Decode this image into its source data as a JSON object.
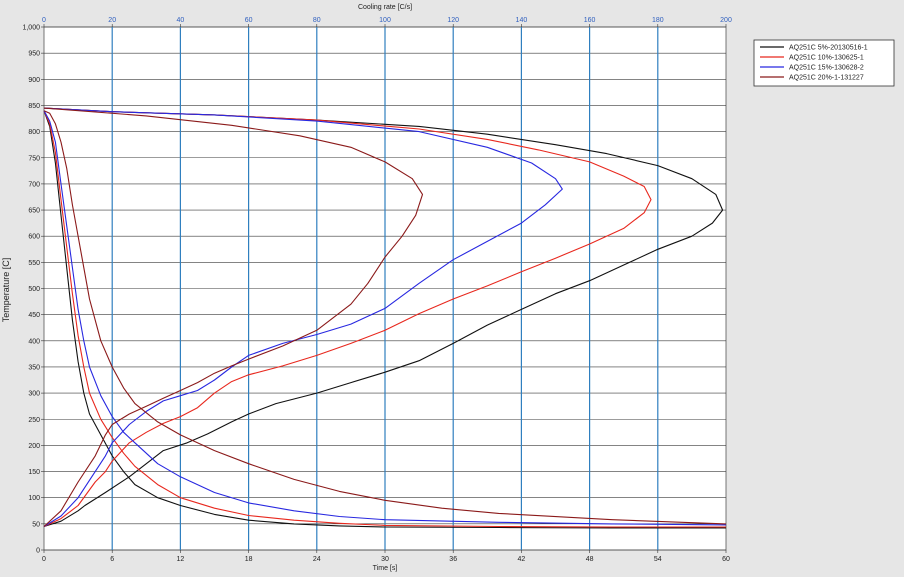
{
  "chart_data": {
    "type": "line",
    "xlabel_bottom": "Time [s]",
    "xlabel_top": "Cooling rate [C/s]",
    "ylabel": "Temperature [C]",
    "xlim_bottom": [
      0,
      60
    ],
    "xlim_top": [
      0,
      200
    ],
    "ylim": [
      0,
      1000
    ],
    "x_ticks_bottom": [
      "0",
      "6",
      "12",
      "18",
      "24",
      "30",
      "36",
      "42",
      "48",
      "54",
      "60"
    ],
    "x_ticks_top": [
      "0",
      "20",
      "40",
      "60",
      "80",
      "100",
      "120",
      "140",
      "160",
      "180",
      "200"
    ],
    "y_ticks": [
      "0",
      "50",
      "100",
      "150",
      "200",
      "250",
      "300",
      "350",
      "400",
      "450",
      "500",
      "550",
      "600",
      "650",
      "700",
      "750",
      "800",
      "850",
      "900",
      "950",
      "1,000"
    ],
    "grid": true,
    "legend_position": "top-right",
    "series": [
      {
        "name": "AQ251C 5%-20130516-1",
        "color": "#111111",
        "cooling_curve": [
          [
            0,
            840
          ],
          [
            0.5,
            810
          ],
          [
            1,
            740
          ],
          [
            1.5,
            640
          ],
          [
            2,
            540
          ],
          [
            2.5,
            440
          ],
          [
            3,
            360
          ],
          [
            3.5,
            300
          ],
          [
            4,
            260
          ],
          [
            5,
            220
          ],
          [
            6,
            180
          ],
          [
            7,
            150
          ],
          [
            8,
            125
          ],
          [
            10,
            100
          ],
          [
            12,
            85
          ],
          [
            15,
            68
          ],
          [
            18,
            57
          ],
          [
            22,
            50
          ],
          [
            26,
            46
          ],
          [
            30,
            44
          ],
          [
            40,
            43
          ],
          [
            50,
            42
          ],
          [
            60,
            42
          ]
        ],
        "rate_curve": [
          [
            0,
            45
          ],
          [
            5,
            55
          ],
          [
            10,
            75
          ],
          [
            12,
            85
          ],
          [
            18,
            110
          ],
          [
            25,
            140
          ],
          [
            30,
            165
          ],
          [
            35,
            190
          ],
          [
            42,
            205
          ],
          [
            48,
            222
          ],
          [
            55,
            245
          ],
          [
            60,
            260
          ],
          [
            68,
            280
          ],
          [
            80,
            300
          ],
          [
            90,
            320
          ],
          [
            100,
            340
          ],
          [
            110,
            362
          ],
          [
            120,
            395
          ],
          [
            130,
            430
          ],
          [
            140,
            460
          ],
          [
            150,
            490
          ],
          [
            160,
            515
          ],
          [
            170,
            545
          ],
          [
            180,
            575
          ],
          [
            190,
            600
          ],
          [
            196,
            625
          ],
          [
            199,
            650
          ],
          [
            197,
            680
          ],
          [
            190,
            710
          ],
          [
            180,
            735
          ],
          [
            165,
            758
          ],
          [
            150,
            775
          ],
          [
            130,
            795
          ],
          [
            110,
            810
          ],
          [
            80,
            822
          ],
          [
            50,
            832
          ],
          [
            20,
            838
          ],
          [
            0,
            845
          ]
        ]
      },
      {
        "name": "AQ251C 10%-130625-1",
        "color": "#e8281e",
        "cooling_curve": [
          [
            0,
            840
          ],
          [
            0.5,
            815
          ],
          [
            1,
            760
          ],
          [
            1.5,
            670
          ],
          [
            2,
            580
          ],
          [
            2.5,
            490
          ],
          [
            3,
            410
          ],
          [
            3.5,
            350
          ],
          [
            4,
            300
          ],
          [
            5,
            250
          ],
          [
            6,
            215
          ],
          [
            7,
            185
          ],
          [
            8,
            160
          ],
          [
            10,
            125
          ],
          [
            12,
            100
          ],
          [
            15,
            80
          ],
          [
            18,
            66
          ],
          [
            22,
            57
          ],
          [
            26,
            51
          ],
          [
            30,
            47
          ],
          [
            40,
            45
          ],
          [
            50,
            44
          ],
          [
            60,
            44
          ]
        ],
        "rate_curve": [
          [
            0,
            45
          ],
          [
            5,
            60
          ],
          [
            10,
            85
          ],
          [
            15,
            130
          ],
          [
            18,
            150
          ],
          [
            20,
            170
          ],
          [
            25,
            205
          ],
          [
            30,
            225
          ],
          [
            35,
            242
          ],
          [
            40,
            255
          ],
          [
            45,
            272
          ],
          [
            50,
            300
          ],
          [
            55,
            322
          ],
          [
            60,
            335
          ],
          [
            70,
            352
          ],
          [
            80,
            372
          ],
          [
            90,
            395
          ],
          [
            100,
            420
          ],
          [
            110,
            452
          ],
          [
            120,
            480
          ],
          [
            130,
            505
          ],
          [
            140,
            532
          ],
          [
            150,
            558
          ],
          [
            160,
            585
          ],
          [
            170,
            615
          ],
          [
            176,
            645
          ],
          [
            178,
            670
          ],
          [
            176,
            695
          ],
          [
            170,
            715
          ],
          [
            160,
            742
          ],
          [
            145,
            765
          ],
          [
            130,
            785
          ],
          [
            110,
            805
          ],
          [
            80,
            822
          ],
          [
            50,
            832
          ],
          [
            20,
            838
          ],
          [
            0,
            845
          ]
        ]
      },
      {
        "name": "AQ251C 15%-130628-2",
        "color": "#2828e0",
        "cooling_curve": [
          [
            0,
            840
          ],
          [
            0.5,
            820
          ],
          [
            1,
            780
          ],
          [
            1.5,
            700
          ],
          [
            2,
            620
          ],
          [
            2.5,
            540
          ],
          [
            3,
            460
          ],
          [
            3.5,
            400
          ],
          [
            4,
            350
          ],
          [
            5,
            295
          ],
          [
            6,
            255
          ],
          [
            7,
            225
          ],
          [
            8,
            205
          ],
          [
            10,
            165
          ],
          [
            12,
            140
          ],
          [
            15,
            110
          ],
          [
            18,
            90
          ],
          [
            22,
            75
          ],
          [
            26,
            64
          ],
          [
            30,
            58
          ],
          [
            40,
            53
          ],
          [
            50,
            50
          ],
          [
            60,
            48
          ]
        ],
        "rate_curve": [
          [
            0,
            45
          ],
          [
            5,
            65
          ],
          [
            10,
            100
          ],
          [
            15,
            150
          ],
          [
            18,
            180
          ],
          [
            20,
            205
          ],
          [
            25,
            240
          ],
          [
            30,
            265
          ],
          [
            35,
            285
          ],
          [
            40,
            295
          ],
          [
            45,
            305
          ],
          [
            50,
            325
          ],
          [
            55,
            350
          ],
          [
            60,
            372
          ],
          [
            70,
            395
          ],
          [
            80,
            412
          ],
          [
            90,
            432
          ],
          [
            100,
            462
          ],
          [
            110,
            510
          ],
          [
            120,
            555
          ],
          [
            130,
            590
          ],
          [
            140,
            625
          ],
          [
            147,
            660
          ],
          [
            152,
            690
          ],
          [
            150,
            710
          ],
          [
            143,
            740
          ],
          [
            130,
            770
          ],
          [
            110,
            800
          ],
          [
            80,
            820
          ],
          [
            50,
            832
          ],
          [
            20,
            838
          ],
          [
            0,
            845
          ]
        ]
      },
      {
        "name": "AQ251C 20%-1-131227",
        "color": "#8b1a1a",
        "cooling_curve": [
          [
            0,
            840
          ],
          [
            0.5,
            835
          ],
          [
            1,
            815
          ],
          [
            1.5,
            780
          ],
          [
            2,
            730
          ],
          [
            2.5,
            660
          ],
          [
            3,
            600
          ],
          [
            3.5,
            540
          ],
          [
            4,
            480
          ],
          [
            5,
            400
          ],
          [
            6,
            350
          ],
          [
            7,
            310
          ],
          [
            8,
            280
          ],
          [
            10,
            245
          ],
          [
            12,
            220
          ],
          [
            15,
            190
          ],
          [
            18,
            165
          ],
          [
            22,
            135
          ],
          [
            26,
            112
          ],
          [
            30,
            95
          ],
          [
            35,
            80
          ],
          [
            40,
            70
          ],
          [
            50,
            58
          ],
          [
            60,
            50
          ]
        ],
        "rate_curve": [
          [
            0,
            45
          ],
          [
            5,
            75
          ],
          [
            10,
            130
          ],
          [
            15,
            180
          ],
          [
            18,
            220
          ],
          [
            20,
            240
          ],
          [
            25,
            260
          ],
          [
            30,
            275
          ],
          [
            35,
            290
          ],
          [
            40,
            305
          ],
          [
            45,
            320
          ],
          [
            50,
            338
          ],
          [
            55,
            352
          ],
          [
            60,
            365
          ],
          [
            70,
            390
          ],
          [
            80,
            420
          ],
          [
            90,
            470
          ],
          [
            95,
            510
          ],
          [
            100,
            560
          ],
          [
            105,
            600
          ],
          [
            109,
            640
          ],
          [
            111,
            680
          ],
          [
            108,
            710
          ],
          [
            100,
            742
          ],
          [
            90,
            770
          ],
          [
            75,
            792
          ],
          [
            55,
            812
          ],
          [
            30,
            830
          ],
          [
            0,
            845
          ]
        ]
      }
    ]
  }
}
